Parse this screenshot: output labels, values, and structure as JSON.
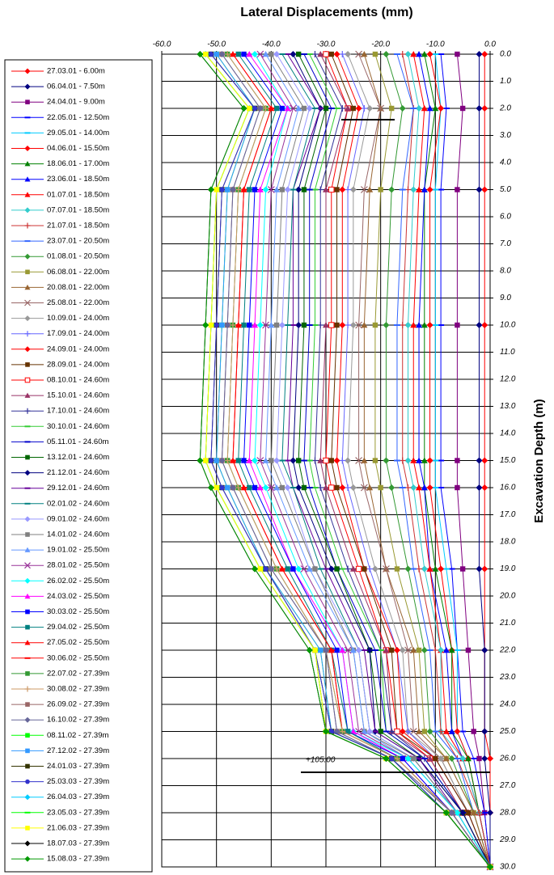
{
  "chart_data": {
    "type": "line",
    "orientation": "horizontal",
    "invert_y": true,
    "title": "Lateral Displacements (mm)",
    "y_label": "Excavation Depth (m)",
    "annotation": "+105.00",
    "xlim": [
      -60,
      0
    ],
    "xticks": [
      {
        "value": -60,
        "label": "-60.0"
      },
      {
        "value": -50,
        "label": "-50.0"
      },
      {
        "value": -40,
        "label": "-40.0"
      },
      {
        "value": -30,
        "label": "-30.0"
      },
      {
        "value": -20,
        "label": "-20.0"
      },
      {
        "value": -10,
        "label": "-10.0"
      },
      {
        "value": 0,
        "label": "0.0"
      }
    ],
    "ylim": [
      0,
      30
    ],
    "yticks": [
      {
        "value": 0,
        "label": "0.0"
      },
      {
        "value": 1,
        "label": "1.0"
      },
      {
        "value": 2,
        "label": "2.0"
      },
      {
        "value": 3,
        "label": "3.0"
      },
      {
        "value": 4,
        "label": "4.0"
      },
      {
        "value": 5,
        "label": "5.0"
      },
      {
        "value": 6,
        "label": "6.0"
      },
      {
        "value": 7,
        "label": "7.0"
      },
      {
        "value": 8,
        "label": "8.0"
      },
      {
        "value": 9,
        "label": "9.0"
      },
      {
        "value": 10,
        "label": "10.0"
      },
      {
        "value": 11,
        "label": "11.0"
      },
      {
        "value": 12,
        "label": "12.0"
      },
      {
        "value": 13,
        "label": "13.0"
      },
      {
        "value": 14,
        "label": "14.0"
      },
      {
        "value": 15,
        "label": "15.0"
      },
      {
        "value": 16,
        "label": "16.0"
      },
      {
        "value": 17,
        "label": "17.0"
      },
      {
        "value": 18,
        "label": "18.0"
      },
      {
        "value": 19,
        "label": "19.0"
      },
      {
        "value": 20,
        "label": "20.0"
      },
      {
        "value": 21,
        "label": "21.0"
      },
      {
        "value": 22,
        "label": "22.0"
      },
      {
        "value": 23,
        "label": "23.0"
      },
      {
        "value": 24,
        "label": "24.0"
      },
      {
        "value": 25,
        "label": "25.0"
      },
      {
        "value": 26,
        "label": "26.0"
      },
      {
        "value": 27,
        "label": "27.0"
      },
      {
        "value": 28,
        "label": "28.0"
      },
      {
        "value": 29,
        "label": "29.0"
      },
      {
        "value": 30,
        "label": "30.0"
      }
    ],
    "grid": true,
    "depths": [
      0,
      2,
      5,
      10,
      15,
      16,
      19,
      22,
      25,
      26,
      28,
      30
    ],
    "series": [
      {
        "name": "27.03.01 - 6.00m",
        "color": "#ff0000",
        "marker": "diamond",
        "values": [
          -1,
          -1,
          -1,
          -1,
          -1,
          -1,
          -1,
          -1,
          -1,
          0,
          0,
          0
        ]
      },
      {
        "name": "06.04.01 - 7.50m",
        "color": "#000080",
        "marker": "diamond",
        "values": [
          -2,
          -2,
          -2,
          -2,
          -2,
          -2,
          -2,
          -1,
          -1,
          -1,
          0,
          0
        ]
      },
      {
        "name": "24.04.01 - 9.00m",
        "color": "#800080",
        "marker": "square",
        "values": [
          -6,
          -5,
          -6,
          -6,
          -6,
          -6,
          -5,
          -4,
          -3,
          -2,
          -1,
          0
        ]
      },
      {
        "name": "22.05.01 - 12.50m",
        "color": "#0000ff",
        "marker": "dash",
        "values": [
          -9,
          -8,
          -9,
          -9,
          -9,
          -9,
          -7,
          -6,
          -5,
          -3,
          -1,
          0
        ]
      },
      {
        "name": "29.05.01 - 14.00m",
        "color": "#00ccff",
        "marker": "dash",
        "values": [
          -10,
          -9,
          -10,
          -10,
          -10,
          -10,
          -8,
          -6,
          -6,
          -4,
          -2,
          0
        ]
      },
      {
        "name": "04.06.01 - 15.50m",
        "color": "#ff0000",
        "marker": "diamond",
        "values": [
          -11,
          -9,
          -11,
          -11,
          -11,
          -11,
          -9,
          -7,
          -6,
          -4,
          -2,
          0
        ]
      },
      {
        "name": "18.06.01 - 17.00m",
        "color": "#008000",
        "marker": "triangle",
        "values": [
          -12,
          -10,
          -12,
          -12,
          -12,
          -12,
          -10,
          -7,
          -7,
          -4,
          -2,
          0
        ]
      },
      {
        "name": "23.06.01 - 18.50m",
        "color": "#0000ff",
        "marker": "triangle",
        "values": [
          -13,
          -11,
          -12,
          -13,
          -13,
          -12,
          -11,
          -8,
          -7,
          -5,
          -2,
          0
        ]
      },
      {
        "name": "01.07.01 - 18.50m",
        "color": "#ff0000",
        "marker": "triangle",
        "values": [
          -14,
          -12,
          -13,
          -14,
          -14,
          -13,
          -11,
          -9,
          -8,
          -5,
          -2,
          0
        ]
      },
      {
        "name": "07.07.01 - 18.50m",
        "color": "#33cccc",
        "marker": "diamond",
        "values": [
          -15,
          -13,
          -14,
          -15,
          -15,
          -14,
          -12,
          -9,
          -9,
          -5,
          -2,
          0
        ]
      },
      {
        "name": "21.07.01 - 18.50m",
        "color": "#cc3333",
        "marker": "plus",
        "values": [
          -16,
          -14,
          -15,
          -16,
          -16,
          -15,
          -13,
          -10,
          -9,
          -6,
          -2,
          0
        ]
      },
      {
        "name": "23.07.01 - 20.50m",
        "color": "#3366ff",
        "marker": "dash",
        "values": [
          -17,
          -14,
          -16,
          -17,
          -17,
          -16,
          -14,
          -11,
          -10,
          -6,
          -3,
          0
        ]
      },
      {
        "name": "01.08.01 - 20.50m",
        "color": "#339933",
        "marker": "diamond",
        "values": [
          -19,
          -16,
          -18,
          -19,
          -19,
          -18,
          -15,
          -12,
          -11,
          -7,
          -3,
          0
        ]
      },
      {
        "name": "06.08.01 - 22.00m",
        "color": "#999933",
        "marker": "square",
        "values": [
          -21,
          -18,
          -20,
          -21,
          -21,
          -20,
          -17,
          -13,
          -12,
          -8,
          -3,
          0
        ]
      },
      {
        "name": "20.08.01 - 22.00m",
        "color": "#996633",
        "marker": "triangle",
        "values": [
          -23,
          -20,
          -22,
          -23,
          -23,
          -22,
          -19,
          -14,
          -13,
          -8,
          -3,
          0
        ]
      },
      {
        "name": "25.08.01 - 22.00m",
        "color": "#996666",
        "marker": "x",
        "values": [
          -24,
          -20,
          -23,
          -24,
          -24,
          -23,
          -19,
          -15,
          -14,
          -9,
          -4,
          0
        ]
      },
      {
        "name": "10.09.01 - 24.00m",
        "color": "#999999",
        "marker": "diamond",
        "values": [
          -26,
          -22,
          -25,
          -25,
          -26,
          -25,
          -21,
          -16,
          -15,
          -9,
          -4,
          0
        ]
      },
      {
        "name": "17.09.01 - 24.00m",
        "color": "#6666ff",
        "marker": "plus",
        "values": [
          -27,
          -23,
          -26,
          -26,
          -27,
          -26,
          -22,
          -17,
          -15,
          -10,
          -4,
          0
        ]
      },
      {
        "name": "24.09.01 - 24.00m",
        "color": "#ff0000",
        "marker": "diamond",
        "values": [
          -28,
          -24,
          -27,
          -27,
          -28,
          -27,
          -23,
          -17,
          -16,
          -10,
          -4,
          0
        ]
      },
      {
        "name": "28.09.01 - 24.00m",
        "color": "#663300",
        "marker": "square",
        "values": [
          -29,
          -25,
          -28,
          -28,
          -29,
          -28,
          -23,
          -18,
          -17,
          -10,
          -4,
          0
        ]
      },
      {
        "name": "08.10.01 - 24.60m",
        "color": "#ff0000",
        "marker": "open-square",
        "values": [
          -30,
          -26,
          -29,
          -29,
          -30,
          -29,
          -24,
          -19,
          -17,
          -11,
          -5,
          0
        ]
      },
      {
        "name": "15.10.01 - 24.60m",
        "color": "#993366",
        "marker": "triangle",
        "values": [
          -31,
          -26,
          -30,
          -30,
          -31,
          -30,
          -25,
          -19,
          -18,
          -11,
          -5,
          0
        ]
      },
      {
        "name": "17.10.01 - 24.60m",
        "color": "#333399",
        "marker": "plus",
        "values": [
          -32,
          -27,
          -31,
          -31,
          -32,
          -31,
          -26,
          -20,
          -18,
          -12,
          -5,
          0
        ]
      },
      {
        "name": "30.10.01 - 24.60m",
        "color": "#33cc33",
        "marker": "dash",
        "values": [
          -33,
          -28,
          -32,
          -32,
          -33,
          -32,
          -27,
          -20,
          -19,
          -12,
          -5,
          0
        ]
      },
      {
        "name": "05.11.01 - 24.60m",
        "color": "#0000cc",
        "marker": "dash",
        "values": [
          -34,
          -29,
          -33,
          -33,
          -34,
          -33,
          -28,
          -21,
          -19,
          -12,
          -5,
          0
        ]
      },
      {
        "name": "13.12.01 - 24.60m",
        "color": "#006600",
        "marker": "square",
        "values": [
          -35,
          -30,
          -34,
          -34,
          -35,
          -34,
          -28,
          -22,
          -20,
          -13,
          -5,
          0
        ]
      },
      {
        "name": "21.12.01 - 24.60m",
        "color": "#000080",
        "marker": "diamond",
        "values": [
          -36,
          -31,
          -35,
          -35,
          -36,
          -35,
          -29,
          -22,
          -21,
          -13,
          -5,
          0
        ]
      },
      {
        "name": "29.12.01 - 24.60m",
        "color": "#660099",
        "marker": "dash",
        "values": [
          -37,
          -31,
          -36,
          -36,
          -37,
          -36,
          -30,
          -23,
          -21,
          -13,
          -6,
          0
        ]
      },
      {
        "name": "02.01.02 - 24.60m",
        "color": "#008080",
        "marker": "dash",
        "values": [
          -38,
          -32,
          -36,
          -37,
          -38,
          -36,
          -31,
          -24,
          -22,
          -14,
          -6,
          0
        ]
      },
      {
        "name": "09.01.02 - 24.60m",
        "color": "#9999ff",
        "marker": "diamond",
        "values": [
          -39,
          -33,
          -37,
          -38,
          -39,
          -37,
          -32,
          -24,
          -22,
          -14,
          -6,
          0
        ]
      },
      {
        "name": "14.01.02 - 24.60m",
        "color": "#808080",
        "marker": "square",
        "values": [
          -40,
          -34,
          -38,
          -39,
          -40,
          -38,
          -32,
          -25,
          -23,
          -14,
          -6,
          0
        ]
      },
      {
        "name": "19.01.02 - 25.50m",
        "color": "#6699ff",
        "marker": "triangle",
        "values": [
          -41,
          -35,
          -39,
          -40,
          -41,
          -39,
          -33,
          -25,
          -23,
          -15,
          -6,
          0
        ]
      },
      {
        "name": "28.01.02 - 25.50m",
        "color": "#993399",
        "marker": "x",
        "values": [
          -42,
          -36,
          -40,
          -41,
          -42,
          -40,
          -34,
          -26,
          -24,
          -15,
          -6,
          0
        ]
      },
      {
        "name": "26.02.02 - 25.50m",
        "color": "#00ffff",
        "marker": "diamond",
        "values": [
          -43,
          -37,
          -41,
          -42,
          -43,
          -41,
          -35,
          -27,
          -25,
          -15,
          -6,
          0
        ]
      },
      {
        "name": "24.03.02 - 25.50m",
        "color": "#ff00ff",
        "marker": "triangle",
        "values": [
          -44,
          -37,
          -42,
          -43,
          -44,
          -42,
          -36,
          -27,
          -25,
          -16,
          -7,
          0
        ]
      },
      {
        "name": "30.03.02 - 25.50m",
        "color": "#0000ff",
        "marker": "square",
        "values": [
          -45,
          -38,
          -43,
          -44,
          -45,
          -43,
          -36,
          -28,
          -26,
          -16,
          -7,
          0
        ]
      },
      {
        "name": "29.04.02 - 25.50m",
        "color": "#008080",
        "marker": "square",
        "values": [
          -46,
          -39,
          -44,
          -45,
          -46,
          -44,
          -37,
          -29,
          -26,
          -17,
          -7,
          0
        ]
      },
      {
        "name": "27.05.02 - 25.50m",
        "color": "#ff0000",
        "marker": "triangle",
        "values": [
          -47,
          -40,
          -45,
          -46,
          -47,
          -45,
          -38,
          -29,
          -27,
          -17,
          -7,
          0
        ]
      },
      {
        "name": "30.06.02 - 25.50m",
        "color": "#ff0000",
        "marker": "dash",
        "values": [
          -47,
          -40,
          -45,
          -46,
          -47,
          -45,
          -38,
          -29,
          -27,
          -17,
          -7,
          0
        ]
      },
      {
        "name": "22.07.02 - 27.39m",
        "color": "#339933",
        "marker": "square",
        "values": [
          -48,
          -41,
          -46,
          -47,
          -48,
          -46,
          -39,
          -30,
          -27,
          -17,
          -7,
          0
        ]
      },
      {
        "name": "30.08.02 - 27.39m",
        "color": "#cc9966",
        "marker": "plus",
        "values": [
          -48,
          -41,
          -46,
          -47,
          -48,
          -46,
          -39,
          -30,
          -27,
          -17,
          -7,
          0
        ]
      },
      {
        "name": "26.09.02 - 27.39m",
        "color": "#996666",
        "marker": "square",
        "values": [
          -49,
          -42,
          -47,
          -48,
          -49,
          -47,
          -40,
          -30,
          -28,
          -18,
          -7,
          0
        ]
      },
      {
        "name": "16.10.02 - 27.39m",
        "color": "#666699",
        "marker": "diamond",
        "values": [
          -49,
          -42,
          -47,
          -48,
          -49,
          -47,
          -40,
          -30,
          -28,
          -18,
          -7,
          0
        ]
      },
      {
        "name": "08.11.02 - 27.39m",
        "color": "#00ff00",
        "marker": "square",
        "values": [
          -50,
          -43,
          -48,
          -49,
          -50,
          -48,
          -41,
          -31,
          -29,
          -18,
          -8,
          0
        ]
      },
      {
        "name": "27.12.02 - 27.39m",
        "color": "#3399ff",
        "marker": "square",
        "values": [
          -50,
          -43,
          -48,
          -49,
          -50,
          -48,
          -41,
          -31,
          -29,
          -18,
          -8,
          0
        ]
      },
      {
        "name": "24.01.03 - 27.39m",
        "color": "#333300",
        "marker": "square",
        "values": [
          -51,
          -43,
          -49,
          -50,
          -51,
          -49,
          -41,
          -32,
          -29,
          -18,
          -8,
          0
        ]
      },
      {
        "name": "25.03.03 - 27.39m",
        "color": "#3333cc",
        "marker": "circle",
        "values": [
          -51,
          -43,
          -49,
          -50,
          -51,
          -49,
          -41,
          -32,
          -29,
          -18,
          -8,
          0
        ]
      },
      {
        "name": "26.04.03 - 27.39m",
        "color": "#00ccff",
        "marker": "diamond",
        "values": [
          -52,
          -44,
          -50,
          -51,
          -52,
          -50,
          -42,
          -32,
          -30,
          -19,
          -8,
          0
        ]
      },
      {
        "name": "23.05.03 - 27.39m",
        "color": "#00ff00",
        "marker": "dash",
        "values": [
          -52,
          -44,
          -50,
          -51,
          -52,
          -50,
          -42,
          -32,
          -30,
          -19,
          -8,
          0
        ]
      },
      {
        "name": "21.06.03 - 27.39m",
        "color": "#ffff00",
        "marker": "square",
        "values": [
          -52,
          -44,
          -50,
          -51,
          -52,
          -50,
          -42,
          -32,
          -30,
          -19,
          -8,
          0
        ]
      },
      {
        "name": "18.07.03 - 27.39m",
        "color": "#000000",
        "marker": "diamond",
        "values": [
          -53,
          -45,
          -51,
          -52,
          -53,
          -51,
          -43,
          -33,
          -30,
          -19,
          -8,
          0
        ]
      },
      {
        "name": "15.08.03 - 27.39m",
        "color": "#009900",
        "marker": "diamond",
        "values": [
          -53,
          -45,
          -51,
          -52,
          -53,
          -51,
          -43,
          -33,
          -30,
          -19,
          -8,
          0
        ]
      }
    ]
  }
}
